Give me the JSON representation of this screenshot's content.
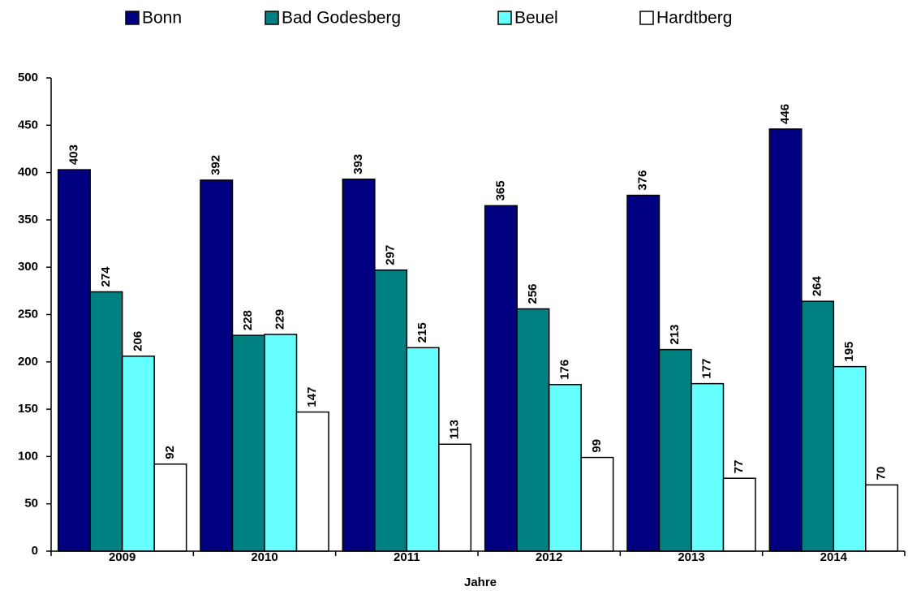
{
  "chart_data": {
    "type": "bar",
    "x_label": "Jahre",
    "categories": [
      "2009",
      "2010",
      "2011",
      "2012",
      "2013",
      "2014"
    ],
    "series": [
      {
        "name": "Bonn",
        "color": "#000080",
        "values": [
          403,
          392,
          393,
          365,
          376,
          446
        ]
      },
      {
        "name": "Bad Godesberg",
        "color": "#008080",
        "values": [
          274,
          228,
          297,
          256,
          213,
          264
        ]
      },
      {
        "name": "Beuel",
        "color": "#66ffff",
        "values": [
          206,
          229,
          215,
          176,
          177,
          195
        ]
      },
      {
        "name": "Hardtberg",
        "color": "#ffffff",
        "values": [
          92,
          147,
          113,
          99,
          77,
          70
        ]
      }
    ],
    "ylim": [
      0,
      500
    ],
    "yticks": [
      0,
      50,
      100,
      150,
      200,
      250,
      300,
      350,
      400,
      450,
      500
    ],
    "legend": "top",
    "grid": false
  }
}
